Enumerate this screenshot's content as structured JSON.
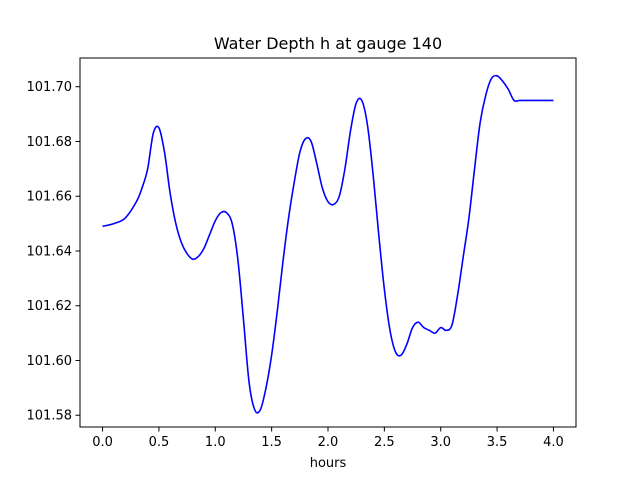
{
  "chart_data": {
    "type": "line",
    "title": "Water Depth h at gauge 140",
    "xlabel": "hours",
    "ylabel": "",
    "xlim": [
      -0.2,
      4.2
    ],
    "ylim": [
      101.5757,
      101.7105
    ],
    "xticks": [
      0.0,
      0.5,
      1.0,
      1.5,
      2.0,
      2.5,
      3.0,
      3.5,
      4.0
    ],
    "xtick_labels": [
      "0.0",
      "0.5",
      "1.0",
      "1.5",
      "2.0",
      "2.5",
      "3.0",
      "3.5",
      "4.0"
    ],
    "yticks": [
      101.58,
      101.6,
      101.62,
      101.64,
      101.66,
      101.68,
      101.7
    ],
    "ytick_labels": [
      "101.58",
      "101.60",
      "101.62",
      "101.64",
      "101.66",
      "101.68",
      "101.70"
    ],
    "grid": false,
    "series": [
      {
        "color": "#0000ff",
        "x": [
          0.0,
          0.1,
          0.2,
          0.3,
          0.35,
          0.4,
          0.45,
          0.5,
          0.55,
          0.6,
          0.65,
          0.7,
          0.75,
          0.8,
          0.85,
          0.9,
          0.95,
          1.0,
          1.05,
          1.1,
          1.15,
          1.2,
          1.25,
          1.3,
          1.35,
          1.4,
          1.45,
          1.5,
          1.55,
          1.6,
          1.65,
          1.7,
          1.75,
          1.8,
          1.85,
          1.9,
          1.95,
          2.0,
          2.05,
          2.1,
          2.15,
          2.2,
          2.25,
          2.3,
          2.35,
          2.4,
          2.45,
          2.5,
          2.55,
          2.6,
          2.65,
          2.7,
          2.75,
          2.8,
          2.85,
          2.9,
          2.95,
          3.0,
          3.05,
          3.1,
          3.15,
          3.2,
          3.25,
          3.3,
          3.35,
          3.4,
          3.45,
          3.5,
          3.55,
          3.6,
          3.65,
          3.7,
          3.75,
          3.8,
          3.85,
          3.9,
          3.95,
          4.0
        ],
        "values": [
          101.649,
          101.65,
          101.652,
          101.658,
          101.663,
          101.67,
          101.683,
          101.685,
          101.676,
          101.661,
          101.65,
          101.643,
          101.639,
          101.637,
          101.638,
          101.641,
          101.646,
          101.651,
          101.654,
          101.654,
          101.65,
          101.637,
          101.615,
          101.592,
          101.582,
          101.582,
          101.59,
          101.602,
          101.618,
          101.636,
          101.652,
          101.665,
          101.676,
          101.681,
          101.68,
          101.672,
          101.663,
          101.658,
          101.657,
          101.66,
          101.67,
          101.684,
          101.694,
          101.695,
          101.686,
          101.668,
          101.646,
          101.626,
          101.611,
          101.603,
          101.602,
          101.606,
          101.612,
          101.614,
          101.612,
          101.611,
          101.61,
          101.612,
          101.611,
          101.613,
          101.624,
          101.638,
          101.652,
          101.67,
          101.687,
          101.697,
          101.703,
          101.704,
          101.702,
          101.699,
          101.695,
          101.695,
          101.695,
          101.695,
          101.695,
          101.695,
          101.695,
          101.695
        ]
      }
    ]
  }
}
